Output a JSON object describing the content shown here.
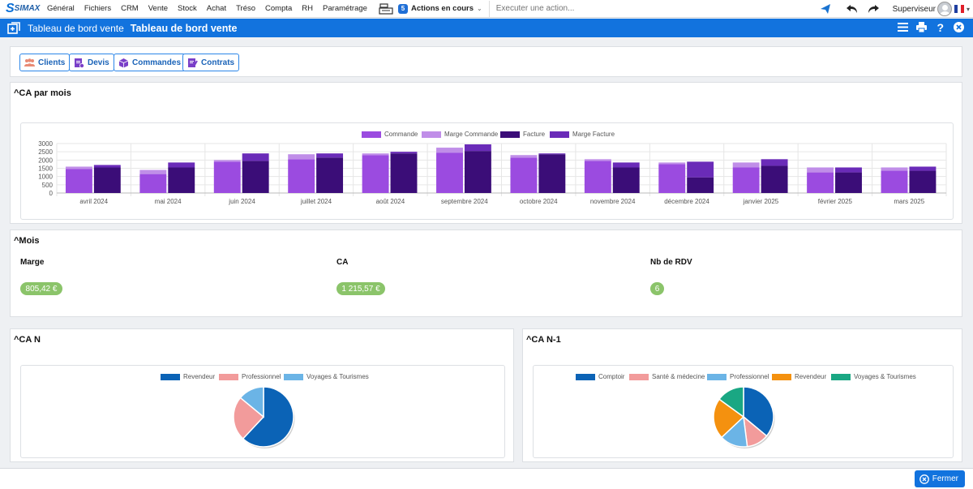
{
  "app": {
    "logo": "SIMAX"
  },
  "nav": {
    "menu": [
      "Général",
      "Fichiers",
      "CRM",
      "Vente",
      "Stock",
      "Achat",
      "Tréso",
      "Compta",
      "RH",
      "Paramétrage"
    ],
    "actions_count": "5",
    "actions_label": "Actions en cours",
    "execute_placeholder": "Executer une action...",
    "user": "Superviseur"
  },
  "titlebar": {
    "subtitle": "Tableau de bord vente",
    "title": "Tableau de bord vente"
  },
  "buttons": [
    {
      "label": "Clients",
      "icon": "users-icon"
    },
    {
      "label": "Devis",
      "icon": "quote-icon"
    },
    {
      "label": "Commandes",
      "icon": "box-icon"
    },
    {
      "label": "Contrats",
      "icon": "contract-icon"
    }
  ],
  "sections": {
    "ca_par_mois": "^CA par mois",
    "mois": "^Mois",
    "ca_n": "^CA N",
    "ca_n1": "^CA N-1"
  },
  "mois": {
    "marge_label": "Marge",
    "marge_value": "805,42 €",
    "ca_label": "CA",
    "ca_value": "1 215,57 €",
    "rdv_label": "Nb de RDV",
    "rdv_value": "6"
  },
  "footer": {
    "close_label": "Fermer"
  },
  "colors": {
    "primary": "#1273de",
    "commande": "#9b4be0",
    "marge_commande": "#c08ee8",
    "facture": "#3b0d78",
    "marge_facture": "#6a2bb8",
    "pill_green": "#8bc46a"
  },
  "chart_data": [
    {
      "type": "bar",
      "categories": [
        "avril 2024",
        "mai 2024",
        "juin 2024",
        "juillet 2024",
        "août 2024",
        "septembre 2024",
        "octobre 2024",
        "novembre 2024",
        "décembre 2024",
        "janvier 2025",
        "février 2025",
        "mars 2025"
      ],
      "ylim": [
        0,
        3000
      ],
      "yticks": [
        "3000",
        "2500",
        "2000",
        "1500",
        "1000",
        "500",
        "0"
      ],
      "series": [
        {
          "name": "Commande",
          "stack": "c",
          "values": [
            1450,
            1150,
            1900,
            2050,
            2300,
            2450,
            2150,
            1950,
            1750,
            1550,
            1250,
            1350
          ]
        },
        {
          "name": "Marge Commande",
          "stack": "c",
          "values": [
            150,
            250,
            100,
            300,
            100,
            300,
            150,
            100,
            100,
            300,
            300,
            200
          ]
        },
        {
          "name": "Facture",
          "stack": "f",
          "values": [
            1550,
            1550,
            1950,
            2150,
            2400,
            2550,
            2350,
            1550,
            950,
            1650,
            1250,
            1350
          ]
        },
        {
          "name": "Marge Facture",
          "stack": "f",
          "values": [
            150,
            300,
            450,
            250,
            100,
            400,
            50,
            300,
            950,
            400,
            300,
            250
          ]
        }
      ]
    },
    {
      "type": "pie",
      "slices": [
        {
          "name": "Revendeur",
          "value": 62,
          "color": "#0b63b6"
        },
        {
          "name": "Professionnel",
          "value": 24,
          "color": "#f29b9b"
        },
        {
          "name": "Voyages & Tourismes",
          "value": 14,
          "color": "#6bb4e6"
        }
      ]
    },
    {
      "type": "pie",
      "slices": [
        {
          "name": "Comptoir",
          "value": 36,
          "color": "#0b63b6"
        },
        {
          "name": "Santé & médecine",
          "value": 12,
          "color": "#f29b9b"
        },
        {
          "name": "Professionnel",
          "value": 15,
          "color": "#6bb4e6"
        },
        {
          "name": "Revendeur",
          "value": 22,
          "color": "#f4910f"
        },
        {
          "name": "Voyages & Tourismes",
          "value": 15,
          "color": "#1aa783"
        }
      ]
    }
  ]
}
